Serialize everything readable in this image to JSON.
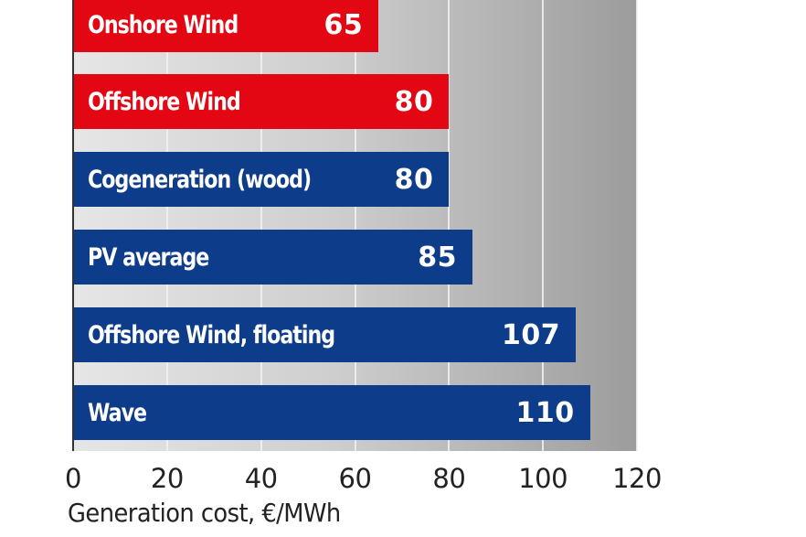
{
  "chart_data": {
    "type": "bar",
    "orientation": "horizontal",
    "title": "",
    "xlabel": "Generation cost, €/MWh",
    "ylabel": "",
    "xlim": [
      0,
      120
    ],
    "x_ticks": [
      "0",
      "20",
      "40",
      "60",
      "80",
      "100",
      "120"
    ],
    "grid": true,
    "legend": null,
    "categories": [
      "Onshore Wind",
      "Offshore Wind",
      "Cogeneration (wood)",
      "PV average",
      "Offshore Wind, floating",
      "Wave"
    ],
    "values": [
      65,
      80,
      80,
      85,
      107,
      110
    ],
    "value_labels": [
      "65",
      "80",
      "80",
      "85",
      "107",
      "110"
    ],
    "bar_colors": [
      "#e30613",
      "#e30613",
      "#0d3c8a",
      "#0d3c8a",
      "#0d3c8a",
      "#0d3c8a"
    ]
  },
  "colors": {
    "red": "#e30613",
    "blue": "#0d3c8a",
    "text": "#222222"
  }
}
